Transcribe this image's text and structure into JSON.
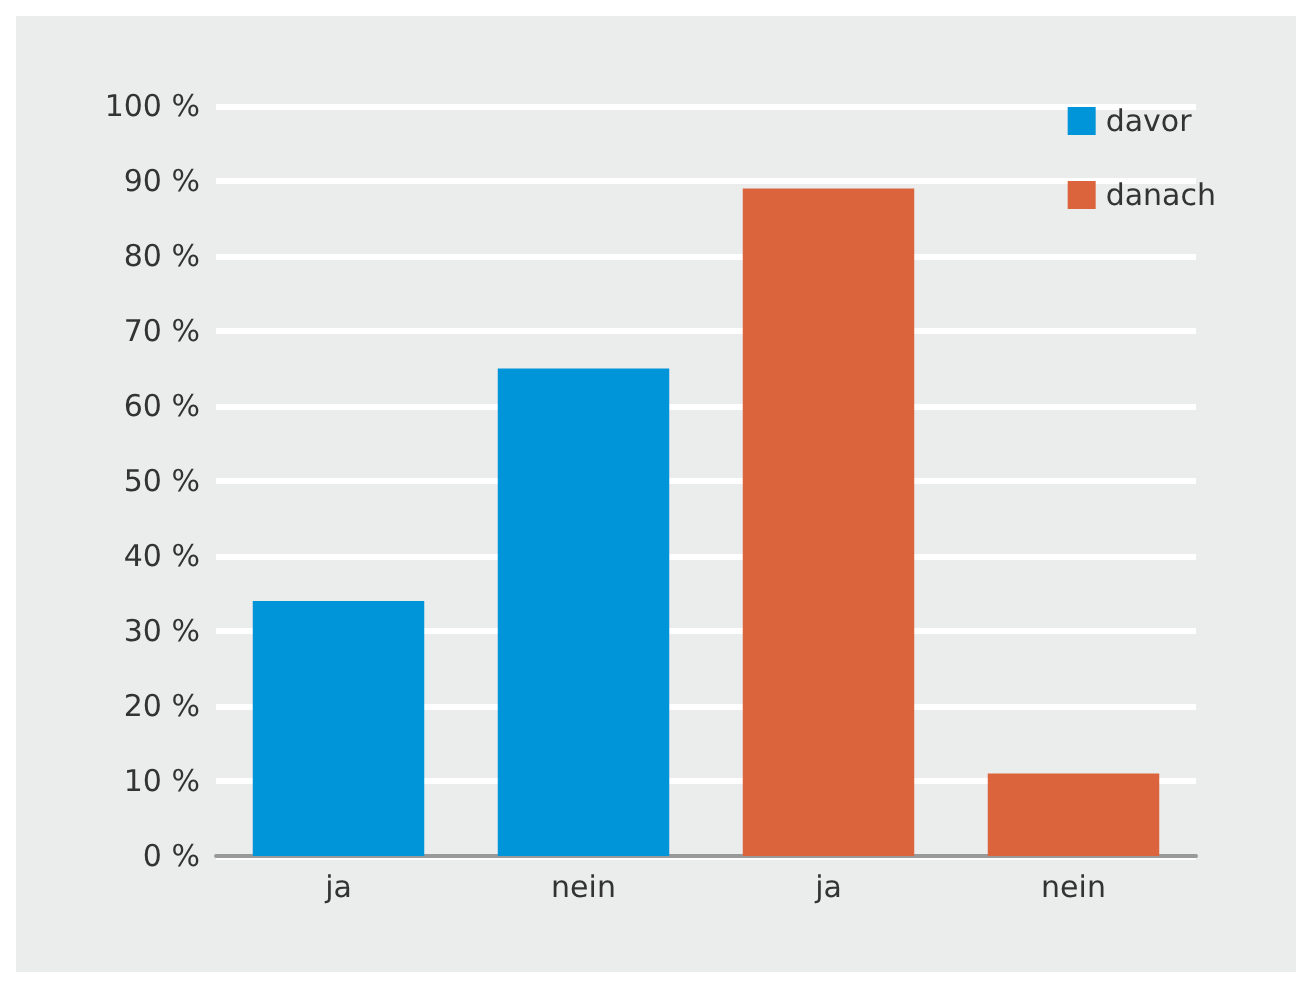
{
  "chart_data": {
    "type": "bar",
    "categories": [
      "ja",
      "nein",
      "ja",
      "nein"
    ],
    "series": [
      {
        "name": "davor",
        "color": "#0095d9",
        "values": [
          34,
          65,
          null,
          null
        ]
      },
      {
        "name": "danach",
        "color": "#dc643c",
        "values": [
          null,
          null,
          89,
          11
        ]
      }
    ],
    "ylim": [
      0,
      100
    ],
    "yticks": [
      {
        "value": 0,
        "label": "0 %"
      },
      {
        "value": 10,
        "label": "10 %"
      },
      {
        "value": 20,
        "label": "20 %"
      },
      {
        "value": 30,
        "label": "30 %"
      },
      {
        "value": 40,
        "label": "40 %"
      },
      {
        "value": 50,
        "label": "50 %"
      },
      {
        "value": 60,
        "label": "60 %"
      },
      {
        "value": 70,
        "label": "70 %"
      },
      {
        "value": 80,
        "label": "80 %"
      },
      {
        "value": 90,
        "label": "90 %"
      },
      {
        "value": 100,
        "label": "100 %"
      }
    ],
    "grid": "y",
    "legend": "top right"
  }
}
